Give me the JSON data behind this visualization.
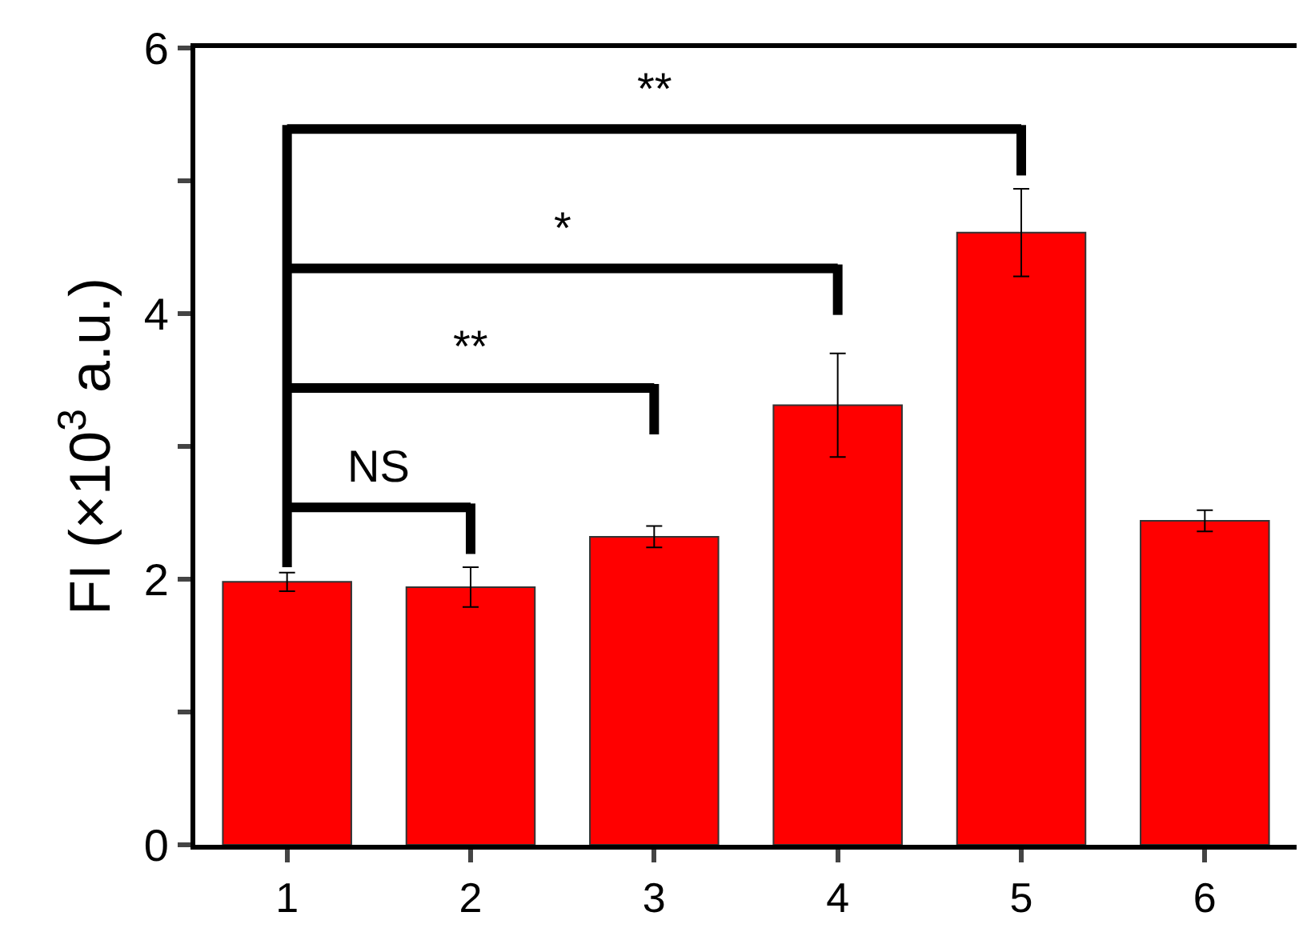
{
  "chart_data": {
    "type": "bar",
    "ylabel": "FI (×10$^{3}$ a.u.)",
    "categories": [
      "1",
      "2",
      "3",
      "4",
      "5",
      "6"
    ],
    "values": [
      1.98,
      1.94,
      2.32,
      3.31,
      4.61,
      2.44
    ],
    "errors": [
      0.07,
      0.15,
      0.08,
      0.39,
      0.33,
      0.08
    ],
    "color": "#ff0000",
    "ylim": [
      0,
      6
    ],
    "yticks": [
      0,
      {
        "value": 1,
        "label": null
      },
      2,
      {
        "value": 3,
        "label": null
      },
      4,
      {
        "value": 5,
        "label": null
      },
      6
    ],
    "legend": false,
    "annotations": [
      "NS",
      "**",
      "*",
      "**"
    ]
  }
}
